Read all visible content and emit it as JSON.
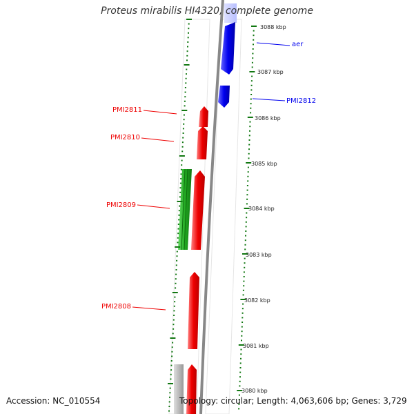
{
  "title": "Proteus mirabilis HI4320, complete genome",
  "footer": {
    "accession": "Accession: NC_010554",
    "topology": "Topology: circular; Length: 4,063,606 bp; Genes: 3,729"
  },
  "ticks": {
    "labels": [
      "3088 kbp",
      "3087 kbp",
      "3086 kbp",
      "3085 kbp",
      "3084 kbp",
      "3083 kbp",
      "3082 kbp",
      "3081 kbp",
      "3080 kbp"
    ]
  },
  "genes": {
    "forward": [
      {
        "label": "aer",
        "color": "#0000ee"
      },
      {
        "label": "PMI2812",
        "color": "#0000ee"
      }
    ],
    "reverse": [
      {
        "label": "PMI2811",
        "color": "#ee0000"
      },
      {
        "label": "PMI2810",
        "color": "#ee0000"
      },
      {
        "label": "PMI2809",
        "color": "#ee0000"
      },
      {
        "label": "PMI2808",
        "color": "#ee0000"
      }
    ]
  },
  "colors": {
    "forward_cds": "#0000ee",
    "reverse_cds": "#ee0000",
    "rna": "#22bb22",
    "other": "#aaaaaa",
    "ticks": "#117711",
    "backbone": "#888888"
  }
}
